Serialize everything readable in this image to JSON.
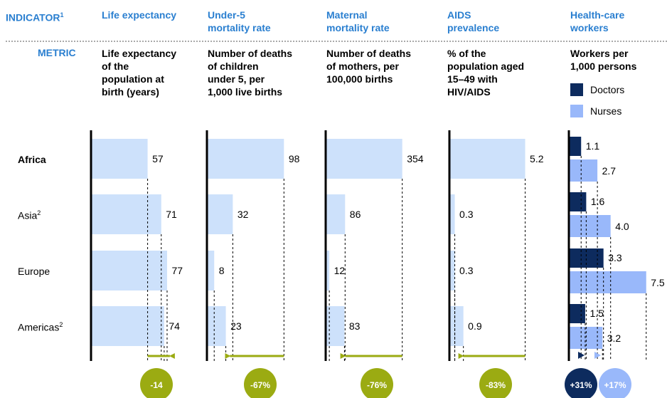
{
  "headers": {
    "indicator": "INDICATOR",
    "indicator_note": "1",
    "life": "Life expectancy",
    "under5_l1": "Under-5",
    "under5_l2": "mortality rate",
    "maternal_l1": "Maternal",
    "maternal_l2": "mortality rate",
    "aids_l1": "AIDS",
    "aids_l2": "prevalence",
    "hcw_l1": "Health-care",
    "hcw_l2": "workers"
  },
  "metric_label": "METRIC",
  "metrics": {
    "life": [
      "Life expectancy",
      "of the",
      "population at",
      "birth (years)"
    ],
    "under5": [
      "Number of deaths",
      "of children",
      "under 5, per",
      "1,000 live births"
    ],
    "maternal": [
      "Number of deaths",
      "of mothers, per",
      "100,000 births"
    ],
    "aids": [
      "% of the",
      "population aged",
      "15–49 with",
      "HIV/AIDS"
    ],
    "hcw": [
      "Workers per",
      "1,000 persons"
    ]
  },
  "legend": {
    "doctors": "Doctors",
    "nurses": "Nurses"
  },
  "regions": [
    {
      "name": "Africa",
      "note": "",
      "bold": true
    },
    {
      "name": "Asia",
      "note": "2",
      "bold": false
    },
    {
      "name": "Europe",
      "note": "",
      "bold": false
    },
    {
      "name": "Americas",
      "note": "2",
      "bold": false
    }
  ],
  "colors": {
    "bar_light": "#cde1fb",
    "doctors": "#0d2b5e",
    "nurses": "#99b8fa",
    "header_blue": "#2a7fd0",
    "olive": "#9bab12"
  },
  "chart_data": [
    {
      "type": "bar",
      "title": "Life expectancy",
      "categories": [
        "Africa",
        "Asia",
        "Europe",
        "Americas"
      ],
      "values": [
        57,
        71,
        77,
        74
      ],
      "labels": [
        "57",
        "71",
        "77",
        "74"
      ],
      "change": "-14"
    },
    {
      "type": "bar",
      "title": "Under-5 mortality rate",
      "categories": [
        "Africa",
        "Asia",
        "Europe",
        "Americas"
      ],
      "values": [
        98,
        32,
        8,
        23
      ],
      "labels": [
        "98",
        "32",
        "8",
        "23"
      ],
      "change": "-67%"
    },
    {
      "type": "bar",
      "title": "Maternal mortality rate",
      "categories": [
        "Africa",
        "Asia",
        "Europe",
        "Americas"
      ],
      "values": [
        354,
        86,
        12,
        83
      ],
      "labels": [
        "354",
        "86",
        "12",
        "83"
      ],
      "change": "-76%"
    },
    {
      "type": "bar",
      "title": "AIDS prevalence",
      "categories": [
        "Africa",
        "Asia",
        "Europe",
        "Americas"
      ],
      "values": [
        5.2,
        0.3,
        0.3,
        0.9
      ],
      "labels": [
        "5.2",
        "0.3",
        "0.3",
        "0.9"
      ],
      "change": "-83%"
    },
    {
      "type": "bar",
      "title": "Health-care workers",
      "categories": [
        "Africa",
        "Asia",
        "Europe",
        "Americas"
      ],
      "series": [
        {
          "name": "Doctors",
          "values": [
            1.1,
            1.6,
            3.3,
            1.5
          ],
          "labels": [
            "1.1",
            "1.6",
            "3.3",
            "1.5"
          ],
          "change": "+31%"
        },
        {
          "name": "Nurses",
          "values": [
            2.7,
            4.0,
            7.5,
            3.2
          ],
          "labels": [
            "2.7",
            "4.0",
            "7.5",
            "3.2"
          ],
          "change": "+17%"
        }
      ]
    }
  ]
}
